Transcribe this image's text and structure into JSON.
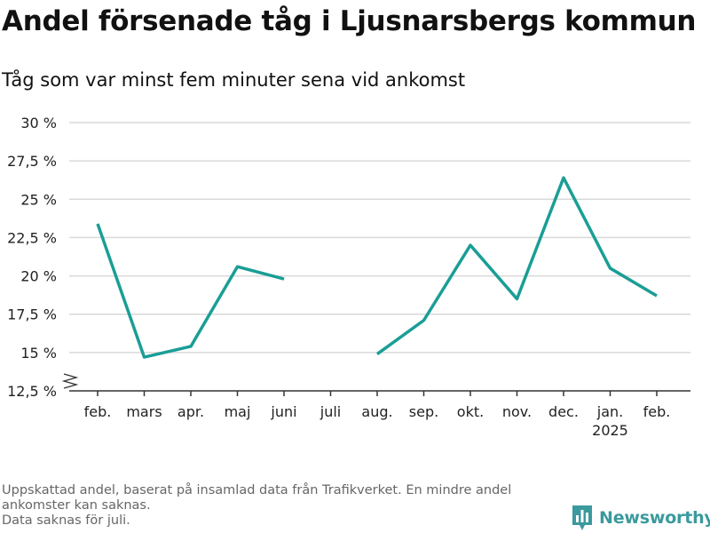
{
  "title": "Andel försenade tåg i Ljusnarsbergs kommun",
  "subtitle": "Tåg som var minst fem minuter sena vid ankomst",
  "footnote": [
    "Uppskattad andel, baserat på insamlad data från Trafikverket. En mindre andel",
    "ankomster kan saknas.",
    "Data saknas för juli."
  ],
  "brand": {
    "name": "Newsworthy",
    "icon": "newsworthy-logo-icon",
    "color": "#3a9a9e"
  },
  "chart_data": {
    "type": "line",
    "categories": [
      "feb.",
      "mars",
      "apr.",
      "maj",
      "juni",
      "juli",
      "aug.",
      "sep.",
      "okt.",
      "nov.",
      "dec.",
      "jan.",
      "feb."
    ],
    "category_sublabels": [
      "",
      "",
      "",
      "",
      "",
      "",
      "",
      "",
      "",
      "",
      "",
      "2025",
      ""
    ],
    "series": [
      {
        "values": [
          23.4,
          14.7,
          15.4,
          20.6,
          19.8,
          null,
          14.9,
          17.1,
          22.0,
          18.5,
          26.4,
          20.5,
          18.7
        ],
        "color": "#1a9e96"
      }
    ],
    "y_ticks": [
      12.5,
      15,
      17.5,
      20,
      22.5,
      25,
      27.5,
      30
    ],
    "y_tick_labels": [
      "12,5 %",
      "15 %",
      "17,5 %",
      "20 %",
      "22,5 %",
      "25 %",
      "27,5 %",
      "30 %"
    ],
    "ylim": [
      12.5,
      30
    ],
    "grid": true,
    "axis_break": true,
    "xlabel": "",
    "ylabel": ""
  }
}
